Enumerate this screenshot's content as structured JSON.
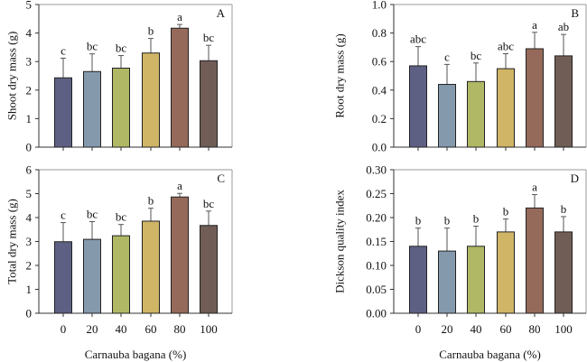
{
  "chart_data": [
    {
      "type": "bar",
      "panel_label": "A",
      "ylabel": "Shoot dry mass (g)",
      "xlabel": "",
      "categories": [
        "0",
        "20",
        "40",
        "60",
        "80",
        "100"
      ],
      "values": [
        2.43,
        2.65,
        2.77,
        3.3,
        4.17,
        3.03
      ],
      "error_upper": [
        3.12,
        3.27,
        3.21,
        3.81,
        4.3,
        3.57
      ],
      "letters": [
        "c",
        "bc",
        "bc",
        "b",
        "a",
        "bc"
      ],
      "ylim": [
        0,
        5
      ],
      "yticks": [
        "0",
        "1",
        "2",
        "3",
        "4",
        "5"
      ],
      "show_xticklabels": false
    },
    {
      "type": "bar",
      "panel_label": "B",
      "ylabel": "Root dry mass (g)",
      "xlabel": "",
      "categories": [
        "0",
        "20",
        "40",
        "60",
        "80",
        "100"
      ],
      "values": [
        0.57,
        0.44,
        0.46,
        0.55,
        0.69,
        0.64
      ],
      "error_upper": [
        0.705,
        0.58,
        0.59,
        0.655,
        0.805,
        0.79
      ],
      "letters": [
        "abc",
        "c",
        "bc",
        "abc",
        "a",
        "ab"
      ],
      "ylim": [
        0,
        1
      ],
      "yticks": [
        "0.0",
        "0.2",
        "0.4",
        "0.6",
        "0.8",
        "1.0"
      ],
      "show_xticklabels": false
    },
    {
      "type": "bar",
      "panel_label": "C",
      "ylabel": "Total dry mass (g)",
      "xlabel": "Carnauba bagana (%)",
      "categories": [
        "0",
        "20",
        "40",
        "60",
        "80",
        "100"
      ],
      "values": [
        2.99,
        3.09,
        3.24,
        3.85,
        4.86,
        3.67
      ],
      "error_upper": [
        3.79,
        3.83,
        3.71,
        4.39,
        5.01,
        4.27
      ],
      "letters": [
        "c",
        "bc",
        "bc",
        "b",
        "a",
        "bc"
      ],
      "ylim": [
        0,
        6
      ],
      "yticks": [
        "0",
        "1",
        "2",
        "3",
        "4",
        "5",
        "6"
      ],
      "show_xticklabels": true
    },
    {
      "type": "bar",
      "panel_label": "D",
      "ylabel": "Dickson quality index",
      "xlabel": "Carnauba bagana (%)",
      "categories": [
        "0",
        "20",
        "40",
        "60",
        "80",
        "100"
      ],
      "values": [
        0.14,
        0.13,
        0.14,
        0.17,
        0.22,
        0.17
      ],
      "error_upper": [
        0.178,
        0.178,
        0.182,
        0.197,
        0.248,
        0.202
      ],
      "letters": [
        "b",
        "b",
        "b",
        "b",
        "a",
        "b"
      ],
      "ylim": [
        0,
        0.3
      ],
      "yticks": [
        "0.00",
        "0.05",
        "0.10",
        "0.15",
        "0.20",
        "0.25",
        "0.30"
      ],
      "show_xticklabels": true
    }
  ],
  "bar_colors": [
    "#5e6083",
    "#8599ad",
    "#b0b865",
    "#d0b566",
    "#966a5a",
    "#705d55"
  ],
  "grid": false
}
